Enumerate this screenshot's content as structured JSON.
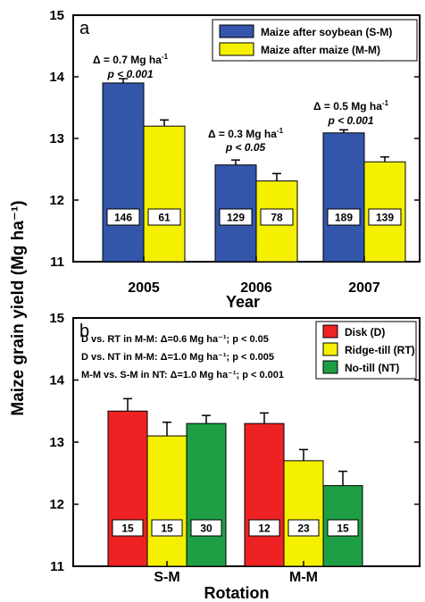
{
  "ylabel": "Maize grain yield (Mg ha⁻¹)",
  "chart_data": [
    {
      "panel_label": "a",
      "type": "bar",
      "xlabel": "Year",
      "categories": [
        "2005",
        "2006",
        "2007"
      ],
      "ylim": [
        11,
        15
      ],
      "yticks": [
        "11",
        "12",
        "13",
        "14",
        "15"
      ],
      "grid": false,
      "legend_position": "top-right",
      "series": [
        {
          "name": "Maize after soybean (S-M)",
          "color": "#3355aa",
          "values": [
            13.9,
            12.57,
            13.09
          ],
          "errors": [
            0.07,
            0.08,
            0.05
          ],
          "n": [
            "146",
            "129",
            "189"
          ]
        },
        {
          "name": "Maize after maize (M-M)",
          "color": "#f5f000",
          "values": [
            13.2,
            12.31,
            12.62
          ],
          "errors": [
            0.1,
            0.12,
            0.08
          ],
          "n": [
            "61",
            "78",
            "139"
          ]
        }
      ],
      "annotations": [
        {
          "category": "2005",
          "delta": "Δ = 0.7 Mg ha",
          "p": "p < 0.001"
        },
        {
          "category": "2006",
          "delta": "Δ = 0.3 Mg ha",
          "p": "p < 0.05"
        },
        {
          "category": "2007",
          "delta": "Δ = 0.5 Mg ha",
          "p": "p < 0.001"
        }
      ]
    },
    {
      "panel_label": "b",
      "type": "bar",
      "xlabel": "Rotation",
      "categories": [
        "S-M",
        "M-M"
      ],
      "ylim": [
        11,
        15
      ],
      "yticks": [
        "11",
        "12",
        "13",
        "14",
        "15"
      ],
      "grid": false,
      "legend_position": "top-right",
      "series": [
        {
          "name": "Disk (D)",
          "color": "#ee2222",
          "values": [
            13.5,
            13.3
          ],
          "errors": [
            0.2,
            0.17
          ],
          "n": [
            "15",
            "12"
          ]
        },
        {
          "name": "Ridge-till (RT)",
          "color": "#f5f000",
          "values": [
            13.1,
            12.7
          ],
          "errors": [
            0.22,
            0.18
          ],
          "n": [
            "15",
            "23"
          ]
        },
        {
          "name": "No-till (NT)",
          "color": "#1e9e45",
          "values": [
            13.3,
            12.3
          ],
          "errors": [
            0.13,
            0.23
          ],
          "n": [
            "30",
            "15"
          ]
        }
      ],
      "annotations": [
        {
          "text": "D vs. RT in M-M: Δ=0.6 Mg ha⁻¹; p < 0.05"
        },
        {
          "text": "D vs. NT in M-M: Δ=1.0 Mg ha⁻¹; p < 0.005"
        },
        {
          "text": "M-M vs. S-M in NT: Δ=1.0 Mg ha⁻¹; p < 0.001"
        }
      ]
    }
  ]
}
